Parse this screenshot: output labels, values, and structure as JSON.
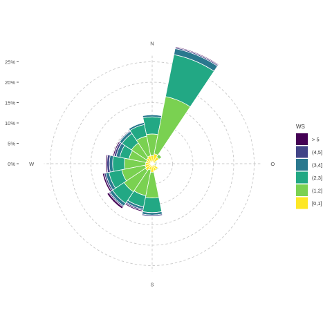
{
  "chart_data": {
    "type": "bar",
    "subtype": "windrose",
    "coord": "polar",
    "start_direction": "N",
    "clockwise": true,
    "directions": [
      "N",
      "NNE",
      "NE",
      "ENE",
      "E",
      "ESE",
      "SE",
      "SSE",
      "S",
      "SSW",
      "SW",
      "WSW",
      "W",
      "WNW",
      "NW",
      "NNW"
    ],
    "ring_values": [
      0,
      5,
      10,
      15,
      20,
      25
    ],
    "radial_tick_labels": [
      "0%",
      "5%",
      "10%",
      "15%",
      "20%",
      "25%"
    ],
    "radial_unit": "%",
    "ylim": [
      0,
      26.5
    ],
    "grid": true,
    "compass_labels": [
      {
        "key": "N",
        "text": "N",
        "angle": 0
      },
      {
        "key": "E",
        "text": "O",
        "angle": 90
      },
      {
        "key": "S",
        "text": "S",
        "angle": 180
      },
      {
        "key": "W",
        "text": "W",
        "angle": 270
      }
    ],
    "legend": {
      "title": "WS",
      "placement": "right",
      "items": [
        {
          "label": "> 5",
          "color": "#440154"
        },
        {
          "label": "(4,5]",
          "color": "#414487"
        },
        {
          "label": "(3,4]",
          "color": "#2A788E"
        },
        {
          "label": "(2,3]",
          "color": "#22A884"
        },
        {
          "label": "(1,2]",
          "color": "#7AD151"
        },
        {
          "label": "[0,1]",
          "color": "#FDE725"
        }
      ]
    },
    "stack_order_inner_to_outer": [
      "[0,1]",
      "(1,2]",
      "(2,3]",
      "(3,4]",
      "(4,5]",
      "> 5"
    ],
    "series": [
      {
        "name": "[0,1]",
        "values": [
          2.0,
          2.5,
          2.0,
          0.8,
          0.3,
          0.6,
          1.7,
          1.8,
          2.1,
          1.6,
          2.0,
          1.8,
          1.6,
          1.5,
          1.7,
          2.0
        ]
      },
      {
        "name": "(1,2]",
        "values": [
          5.3,
          14.3,
          0.8,
          0.4,
          0.0,
          0.4,
          0.2,
          0.1,
          6.3,
          6.4,
          6.3,
          5.8,
          5.2,
          4.3,
          4.4,
          4.9
        ]
      },
      {
        "name": "(2,3]",
        "values": [
          4.2,
          10.5,
          0.0,
          0.0,
          0.0,
          0.1,
          0.0,
          0.0,
          3.6,
          2.8,
          3.4,
          3.2,
          2.9,
          2.3,
          2.8,
          2.9
        ]
      },
      {
        "name": "(3,4]",
        "values": [
          0.5,
          1.5,
          0.0,
          0.0,
          0.0,
          0.0,
          0.0,
          0.0,
          0.6,
          0.6,
          0.8,
          0.8,
          0.8,
          0.9,
          0.7,
          0.5
        ]
      },
      {
        "name": "(4,5]",
        "values": [
          0.0,
          0.3,
          0.0,
          0.0,
          0.0,
          0.0,
          0.0,
          0.0,
          0.3,
          0.3,
          0.3,
          0.4,
          0.6,
          0.5,
          0.2,
          0.1
        ]
      },
      {
        "name": "> 5",
        "values": [
          0.0,
          0.2,
          0.0,
          0.0,
          0.0,
          0.0,
          0.0,
          0.0,
          0.0,
          0.3,
          0.5,
          0.4,
          0.3,
          0.3,
          0.0,
          0.0
        ]
      }
    ],
    "style": {
      "grid_color": "#c8c8c8",
      "text_color": "#4d4d4d",
      "tick_color": "#333333",
      "bar_outline": "#ffffff",
      "background": "#ffffff"
    }
  }
}
